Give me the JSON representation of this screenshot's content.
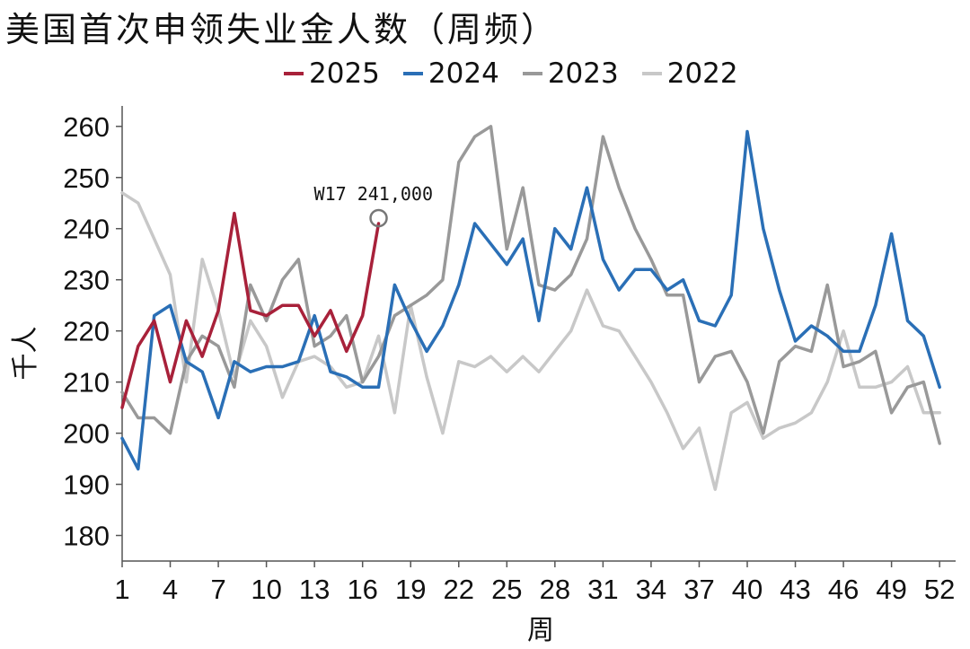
{
  "title": "美国首次申领失业金人数（周频）",
  "chart_data": {
    "type": "line",
    "xlabel": "周",
    "ylabel": "千人",
    "xlim": [
      1,
      53
    ],
    "ylim": [
      175,
      264
    ],
    "x_ticks": [
      1,
      4,
      7,
      10,
      13,
      16,
      19,
      22,
      25,
      28,
      31,
      34,
      37,
      40,
      43,
      46,
      49,
      52
    ],
    "y_ticks": [
      180,
      190,
      200,
      210,
      220,
      230,
      240,
      250,
      260
    ],
    "legend_position": "top-center",
    "grid": false,
    "series": [
      {
        "name": "2022",
        "color": "#c8c8c8",
        "values": [
          247,
          245,
          238,
          231,
          210,
          234,
          224,
          211,
          222,
          217,
          207,
          214,
          215,
          213,
          209,
          210,
          219,
          204,
          225,
          211,
          200,
          214,
          213,
          215,
          212,
          215,
          212,
          216,
          220,
          228,
          221,
          220,
          215,
          210,
          204,
          197,
          201,
          189,
          204,
          206,
          199,
          201,
          202,
          204,
          210,
          220,
          209,
          209,
          210,
          213,
          204,
          204
        ]
      },
      {
        "name": "2023",
        "color": "#999999",
        "values": [
          208,
          203,
          203,
          200,
          214,
          219,
          217,
          209,
          229,
          222,
          230,
          234,
          217,
          219,
          223,
          210,
          215,
          223,
          225,
          227,
          230,
          253,
          258,
          260,
          236,
          248,
          229,
          228,
          231,
          238,
          258,
          248,
          240,
          234,
          227,
          227,
          210,
          215,
          216,
          210,
          200,
          214,
          217,
          216,
          229,
          213,
          214,
          216,
          204,
          209,
          210,
          198
        ]
      },
      {
        "name": "2024",
        "color": "#2a6fb6",
        "values": [
          199,
          193,
          223,
          225,
          214,
          212,
          203,
          214,
          212,
          213,
          213,
          214,
          223,
          212,
          211,
          209,
          209,
          229,
          222,
          216,
          221,
          229,
          241,
          237,
          233,
          238,
          222,
          240,
          236,
          248,
          234,
          228,
          232,
          232,
          228,
          230,
          222,
          221,
          227,
          259,
          240,
          228,
          218,
          221,
          219,
          216,
          216,
          225,
          239,
          222,
          219,
          209
        ]
      },
      {
        "name": "2025",
        "color": "#a8213a",
        "values": [
          205,
          217,
          222,
          210,
          222,
          215,
          224,
          243,
          224,
          223,
          225,
          225,
          219,
          224,
          216,
          223,
          241
        ]
      }
    ],
    "annotation": {
      "text": "W17 241,000",
      "series": "2025",
      "week": 17,
      "value": 241
    }
  }
}
